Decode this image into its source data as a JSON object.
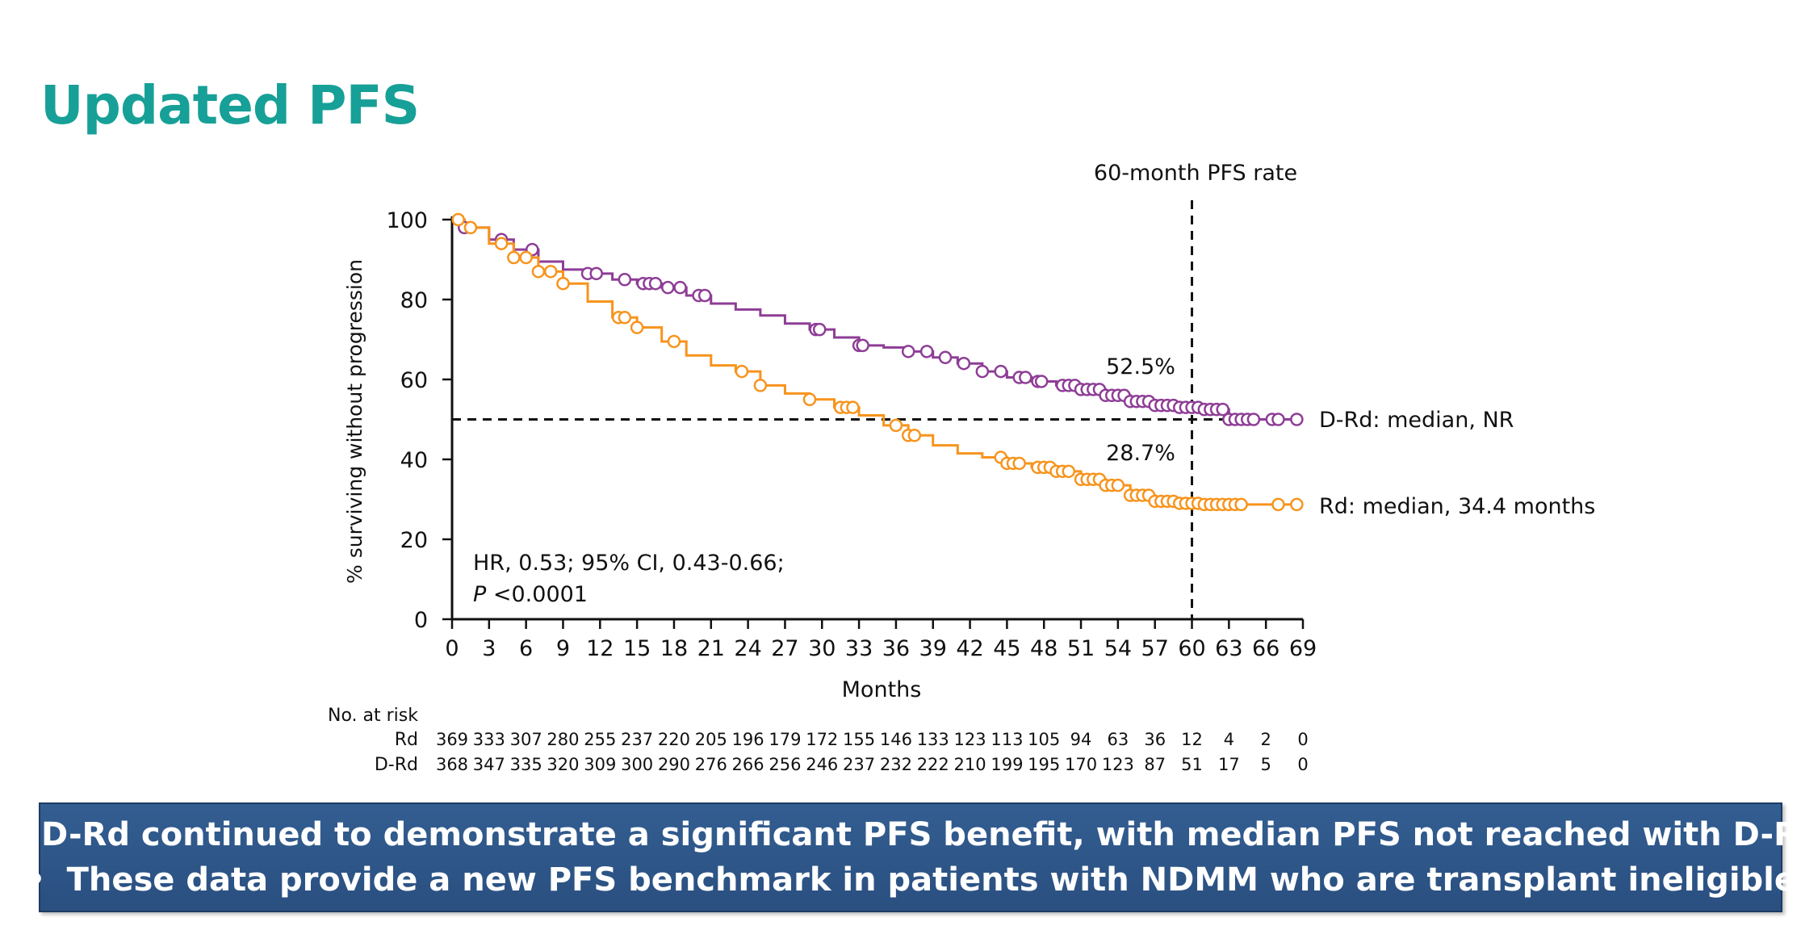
{
  "title": "Updated PFS",
  "colors": {
    "title": "#17a097",
    "drd": "#8e3d96",
    "rd": "#f7941d",
    "banner": "#2f5889",
    "text": "#111111"
  },
  "annotations": {
    "benchmark_label": "60-month PFS rate",
    "drd_rate": "52.5%",
    "rd_rate": "28.7%",
    "stats_line1": "HR, 0.53; 95% CI, 0.43-0.66;",
    "stats_p": "P",
    "stats_line2_rest": " <0.0001",
    "drd_label": "D-Rd: median, NR",
    "rd_label": "Rd: median, 34.4 months"
  },
  "risk_table": {
    "header": "No. at risk",
    "rows": [
      {
        "label": "Rd",
        "values": [
          "369",
          "333",
          "307",
          "280",
          "255",
          "237",
          "220",
          "205",
          "196",
          "179",
          "172",
          "155",
          "146",
          "133",
          "123",
          "113",
          "105",
          "94",
          "63",
          "36",
          "12",
          "4",
          "2",
          "0"
        ]
      },
      {
        "label": "D-Rd",
        "values": [
          "368",
          "347",
          "335",
          "320",
          "309",
          "300",
          "290",
          "276",
          "266",
          "256",
          "246",
          "237",
          "232",
          "222",
          "210",
          "199",
          "195",
          "170",
          "123",
          "87",
          "51",
          "17",
          "5",
          "0"
        ]
      }
    ]
  },
  "banner": {
    "bullets": [
      "D-Rd continued to demonstrate a significant PFS benefit, with median PFS not reached with D-Rd",
      "These data provide a new PFS benchmark in patients with NDMM who are transplant ineligible"
    ]
  },
  "chart_data": {
    "type": "line",
    "xlabel": "Months",
    "ylabel": "% surviving without progression",
    "xlim": [
      0,
      69
    ],
    "ylim": [
      0,
      100
    ],
    "xticks": [
      "0",
      "3",
      "6",
      "9",
      "12",
      "15",
      "18",
      "21",
      "24",
      "27",
      "30",
      "33",
      "36",
      "39",
      "42",
      "45",
      "48",
      "51",
      "54",
      "57",
      "60",
      "63",
      "66",
      "69"
    ],
    "yticks": [
      "0",
      "20",
      "40",
      "60",
      "80",
      "100"
    ],
    "reference_lines": {
      "x": 60,
      "y": 50
    },
    "grid": false,
    "series": [
      {
        "name": "D-Rd",
        "color": "#8e3d96",
        "x": [
          0,
          1,
          3,
          5,
          7,
          9,
          11,
          13,
          15,
          17,
          19,
          21,
          23,
          25,
          27,
          29,
          31,
          33,
          35,
          37,
          39,
          41,
          43,
          45,
          47,
          49,
          51,
          53,
          55,
          57,
          59,
          61,
          63,
          65,
          67,
          69
        ],
        "y": [
          100,
          98,
          95,
          92.5,
          89.5,
          87.5,
          86.5,
          85,
          84,
          83,
          81,
          79,
          77.5,
          76,
          74,
          72.5,
          70.5,
          68.5,
          68,
          67,
          65.5,
          64,
          62,
          60.5,
          59.5,
          58.5,
          57.5,
          56,
          54.5,
          53.5,
          53,
          52.5,
          50,
          50,
          50,
          50
        ]
      },
      {
        "name": "Rd",
        "color": "#f7941d",
        "x": [
          0,
          1,
          3,
          5,
          7,
          9,
          11,
          13,
          15,
          17,
          19,
          21,
          23,
          25,
          27,
          29,
          31,
          33,
          35,
          37,
          39,
          41,
          43,
          45,
          47,
          49,
          51,
          53,
          55,
          57,
          59,
          61,
          63,
          65,
          67,
          69
        ],
        "y": [
          100,
          98,
          94,
          90.5,
          87,
          84,
          79.5,
          75.5,
          73,
          69.5,
          66,
          63.5,
          62,
          58.5,
          56.5,
          55,
          53,
          51,
          48.5,
          46,
          43.5,
          41.5,
          40.5,
          39,
          38,
          37,
          35,
          33.5,
          31,
          29.5,
          29,
          28.7,
          28.7,
          28.7,
          28.7,
          28.7
        ]
      }
    ],
    "censor_marks": [
      {
        "series": "D-Rd",
        "x": [
          1,
          4,
          6.5,
          11,
          11.7,
          14,
          15.5,
          16,
          16.5,
          17.5,
          18.5,
          20,
          20.5,
          29.5,
          29.8,
          33,
          33.3,
          37,
          38.5,
          40,
          41.5,
          43,
          44.5,
          46,
          46.5,
          47.5,
          47.8,
          49.5,
          50,
          50.5,
          51,
          51.5,
          52,
          52.5,
          53,
          53.5,
          54,
          54.5,
          55,
          55.5,
          56,
          56.5,
          57,
          57.5,
          58,
          58.5,
          59,
          59.5,
          60,
          60.5,
          61,
          61.5,
          62,
          62.5,
          63,
          63.5,
          64,
          64.5,
          65,
          66.5,
          67,
          68.5
        ]
      },
      {
        "series": "Rd",
        "x": [
          0.5,
          1.5,
          4,
          5,
          6,
          7,
          8,
          9,
          13.5,
          14,
          15,
          18,
          23.5,
          25,
          29,
          31.5,
          32,
          32.5,
          36,
          37,
          37.5,
          44.5,
          45,
          45.5,
          46,
          47.5,
          48,
          48.5,
          49,
          49.5,
          50,
          51,
          51.5,
          52,
          52.5,
          53,
          53.5,
          54,
          55,
          55.5,
          56,
          56.5,
          57,
          57.5,
          58,
          58.5,
          59,
          59.5,
          60,
          60.5,
          61,
          61.5,
          62,
          62.5,
          63,
          63.5,
          64,
          67,
          68.5
        ]
      }
    ]
  }
}
